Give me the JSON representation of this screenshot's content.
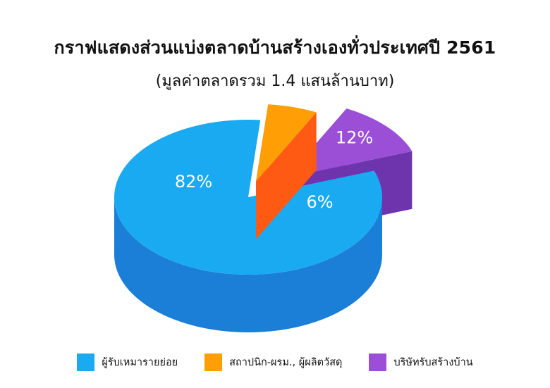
{
  "chart_data": {
    "type": "pie",
    "title": "กราฟแสดงส่วนแบ่งตลาดบ้านสร้างเองทั่วประเทศปี 2561",
    "subtitle": "(มูลค่าตลาดรวม 1.4 แสนล้านบาท)",
    "categories": [
      "ผู้รับเหมารายย่อย",
      "สถาปนิก-ผรม., ผู้ผลิตวัสดุ",
      "บริษัทรับสร้างบ้าน"
    ],
    "values": [
      82,
      6,
      12
    ],
    "value_labels": [
      "82%",
      "6%",
      "12%"
    ],
    "colors": {
      "top": [
        "#1aaaf2",
        "#ff9e05",
        "#9b4fd6"
      ],
      "side": [
        "#1b7fd8",
        "#ff5a14",
        "#6e34ad"
      ]
    },
    "legend_position": "bottom"
  }
}
